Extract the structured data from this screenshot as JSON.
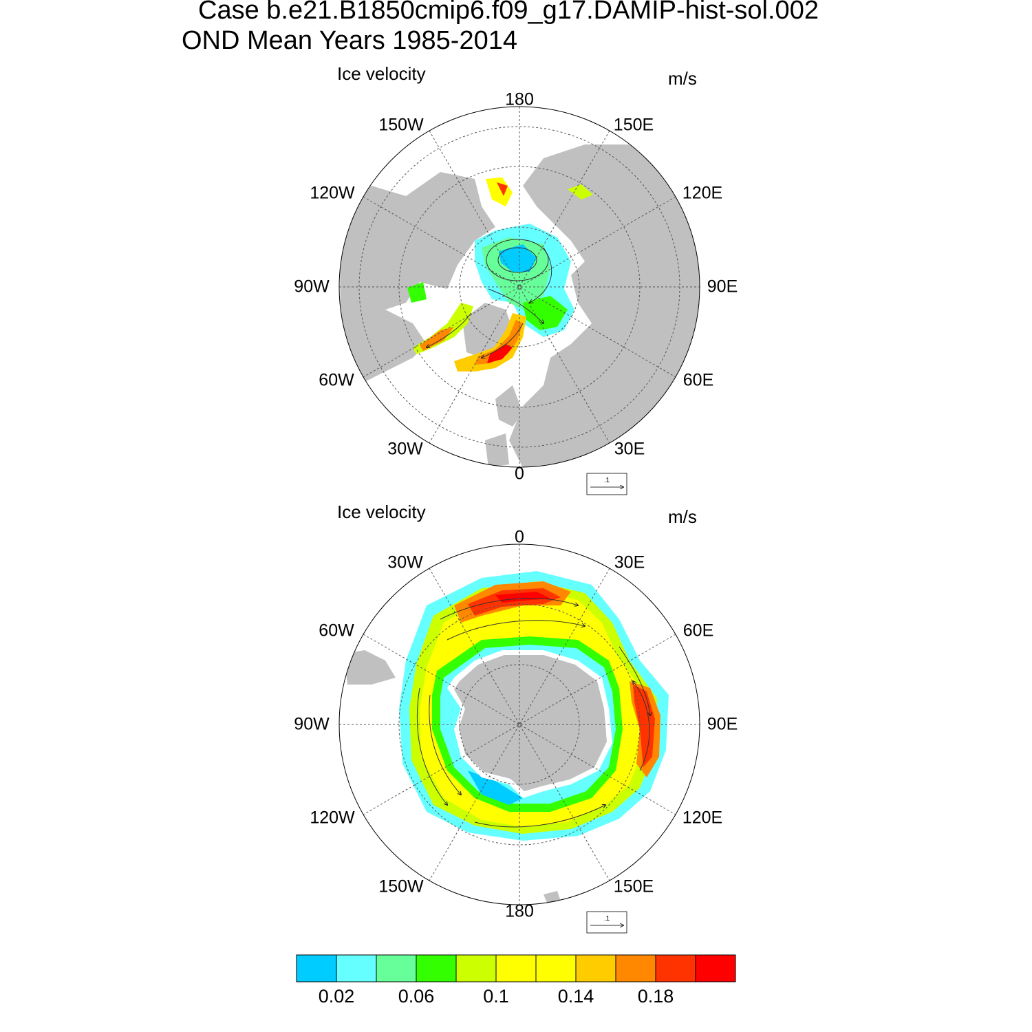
{
  "title": {
    "line1": "Case b.e21.B1850cmip6.f09_g17.DAMIP-hist-sol.002",
    "line2": "OND Mean   Years 1985-2014"
  },
  "panels": [
    {
      "hemisphere": "north",
      "label": "Ice velocity",
      "units": "m/s",
      "ref_vector_label": ".1",
      "lon_labels": [
        "180",
        "150E",
        "120E",
        "90E",
        "60E",
        "30E",
        "0",
        "30W",
        "60W",
        "90W",
        "120W",
        "150W"
      ]
    },
    {
      "hemisphere": "south",
      "label": "Ice velocity",
      "units": "m/s",
      "ref_vector_label": ".1",
      "lon_labels": [
        "0",
        "30E",
        "60E",
        "90E",
        "120E",
        "150E",
        "180",
        "150W",
        "120W",
        "90W",
        "60W",
        "30W"
      ]
    }
  ],
  "colorbar": {
    "colors": [
      "#00ccff",
      "#66ffff",
      "#66ff99",
      "#33ff00",
      "#ccff00",
      "#ffff00",
      "#ffff00",
      "#ffcc00",
      "#ff8800",
      "#ff3300",
      "#ff0000"
    ],
    "tick_labels": [
      "0.02",
      "0.06",
      "0.1",
      "0.14",
      "0.18"
    ]
  },
  "colors": {
    "land": "#c0c0c0",
    "grid": "#555555"
  }
}
